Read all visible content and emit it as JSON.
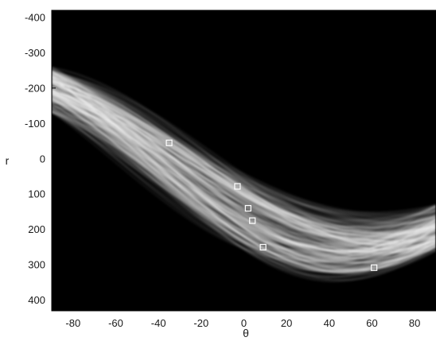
{
  "chart_data": {
    "type": "heatmap",
    "title": "",
    "xlabel": "θ",
    "ylabel": "r",
    "xlim": [
      -90,
      90
    ],
    "ylim": [
      -420,
      430
    ],
    "y_axis_inverted": true,
    "x_ticks": [
      -80,
      -60,
      -40,
      -20,
      0,
      20,
      40,
      60,
      80
    ],
    "x_tick_labels": [
      "-80",
      "-60",
      "-40",
      "-20",
      "0",
      "20",
      "40",
      "60",
      "80"
    ],
    "y_ticks": [
      -400,
      -300,
      -200,
      -100,
      0,
      100,
      200,
      300,
      400
    ],
    "y_tick_labels": [
      "-400",
      "-300",
      "-200",
      "-100",
      "0",
      "100",
      "200",
      "300",
      "400"
    ],
    "grid": false,
    "colormap": "gray",
    "background_color": "#000000",
    "peaks": [
      {
        "theta": -35,
        "r": -45
      },
      {
        "theta": -3,
        "r": 78
      },
      {
        "theta": 2,
        "r": 140
      },
      {
        "theta": 4,
        "r": 175
      },
      {
        "theta": 9,
        "r": 250
      },
      {
        "theta": 61,
        "r": 308
      }
    ]
  }
}
